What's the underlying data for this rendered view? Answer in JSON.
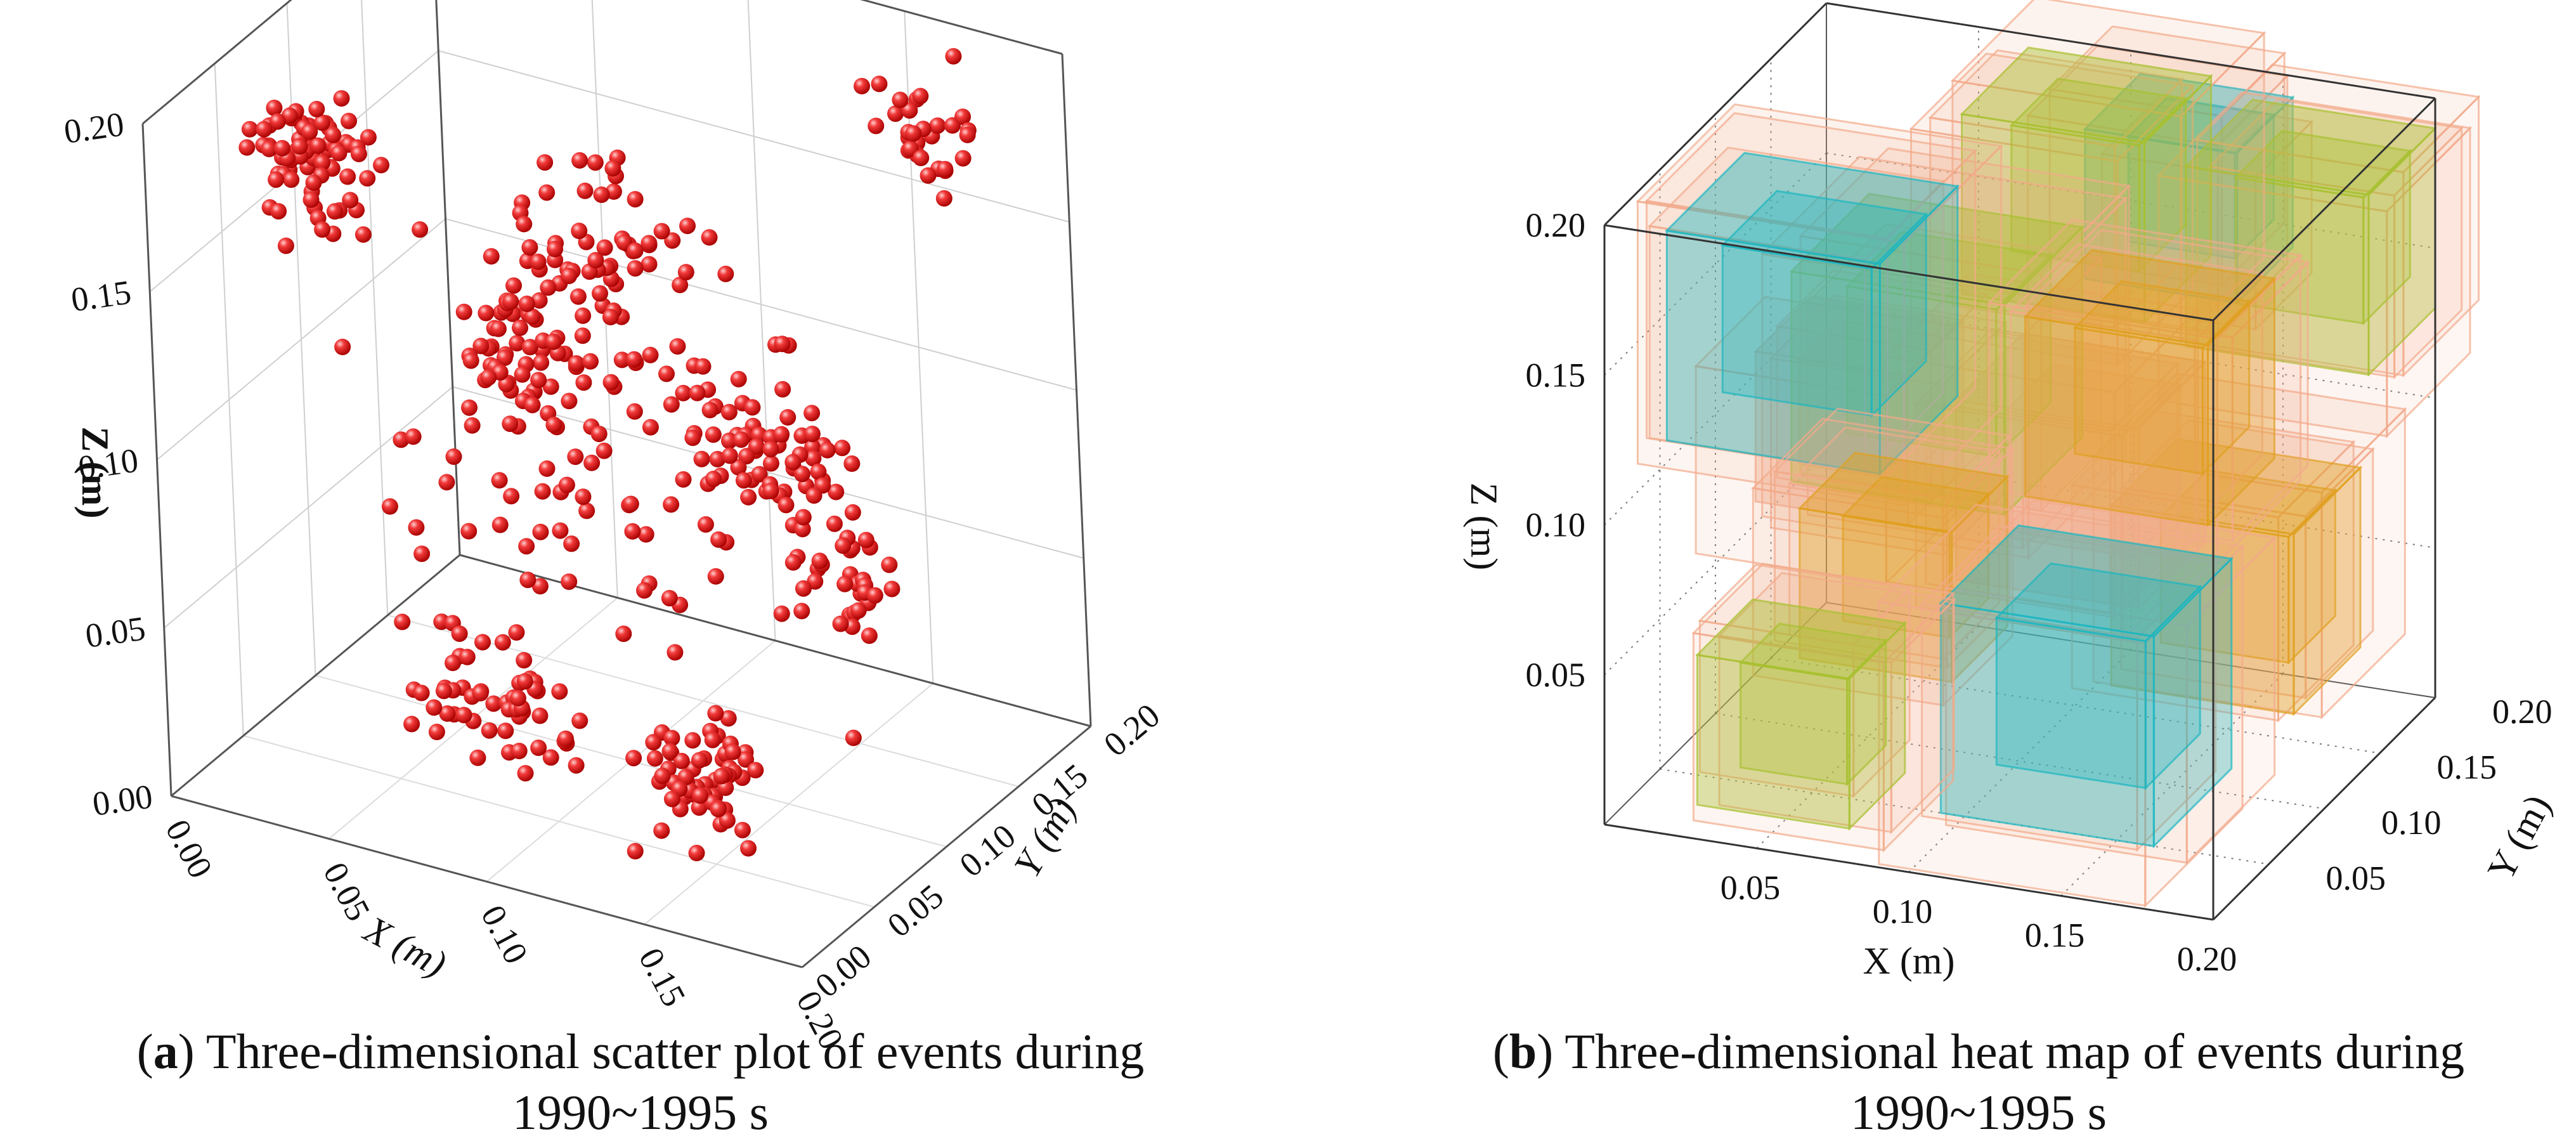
{
  "chart_data": [
    {
      "type": "scatter",
      "title": "",
      "xlabel": "X (m)",
      "ylabel": "Y (m)",
      "zlabel": "Z (m)",
      "xlim": [
        0,
        0.2
      ],
      "ylim": [
        0,
        0.2
      ],
      "zlim": [
        0,
        0.2
      ],
      "x_ticks": [
        "0.00",
        "0.05",
        "0.10",
        "0.15",
        "0.20"
      ],
      "y_ticks": [
        "0.00",
        "0.05",
        "0.10",
        "0.15",
        "0.20"
      ],
      "z_ticks": [
        "0.00",
        "0.05",
        "0.10",
        "0.15",
        "0.20"
      ],
      "marker_color": "#e0141b",
      "point_count": 520,
      "clusters": [
        {
          "x": 0.03,
          "y": 0.05,
          "z": 0.18,
          "spread": 0.03,
          "count": 75
        },
        {
          "x": 0.12,
          "y": 0.05,
          "z": 0.18,
          "spread": 0.04,
          "count": 45
        },
        {
          "x": 0.17,
          "y": 0.17,
          "z": 0.18,
          "spread": 0.03,
          "count": 30
        },
        {
          "x": 0.06,
          "y": 0.11,
          "z": 0.11,
          "spread": 0.03,
          "count": 45
        },
        {
          "x": 0.15,
          "y": 0.11,
          "z": 0.1,
          "spread": 0.03,
          "count": 40
        },
        {
          "x": 0.08,
          "y": 0.05,
          "z": 0.03,
          "spread": 0.04,
          "count": 60
        },
        {
          "x": 0.15,
          "y": 0.04,
          "z": 0.03,
          "spread": 0.03,
          "count": 65
        },
        {
          "x": 0.15,
          "y": 0.14,
          "z": 0.05,
          "spread": 0.03,
          "count": 35
        },
        {
          "x": 0.1,
          "y": 0.1,
          "z": 0.1,
          "spread": 0.1,
          "count": 125
        }
      ],
      "caption_label": "a",
      "caption_text": ") Three-dimensional scatter plot of events during",
      "caption_line2": "1990~1995 s"
    },
    {
      "type": "heatmap",
      "title": "",
      "xlabel": "X (m)",
      "ylabel": "Y (m)",
      "zlabel": "Z (m)",
      "xlim": [
        0,
        0.2
      ],
      "ylim": [
        0,
        0.2
      ],
      "zlim": [
        0,
        0.2
      ],
      "x_ticks": [
        "0.05",
        "0.10",
        "0.15",
        "0.20"
      ],
      "y_ticks": [
        "0.05",
        "0.10",
        "0.15",
        "0.20"
      ],
      "z_ticks": [
        "0.05",
        "0.10",
        "0.15",
        "0.20"
      ],
      "colors": {
        "low": "#f2a98a",
        "mid": "#e0a020",
        "high": "#a8c030",
        "peak": "#1bb6c0"
      },
      "blobs": [
        {
          "x": 0.05,
          "y": 0.05,
          "z": 0.16,
          "size": 0.07,
          "level": "peak"
        },
        {
          "x": 0.08,
          "y": 0.08,
          "z": 0.14,
          "size": 0.07,
          "level": "high"
        },
        {
          "x": 0.1,
          "y": 0.16,
          "z": 0.17,
          "size": 0.06,
          "level": "high"
        },
        {
          "x": 0.13,
          "y": 0.17,
          "z": 0.17,
          "size": 0.05,
          "level": "peak"
        },
        {
          "x": 0.17,
          "y": 0.17,
          "z": 0.16,
          "size": 0.06,
          "level": "high"
        },
        {
          "x": 0.15,
          "y": 0.08,
          "z": 0.14,
          "size": 0.06,
          "level": "mid"
        },
        {
          "x": 0.08,
          "y": 0.05,
          "z": 0.08,
          "size": 0.05,
          "level": "mid"
        },
        {
          "x": 0.14,
          "y": 0.05,
          "z": 0.05,
          "size": 0.07,
          "level": "peak"
        },
        {
          "x": 0.05,
          "y": 0.04,
          "z": 0.03,
          "size": 0.05,
          "level": "high"
        },
        {
          "x": 0.16,
          "y": 0.13,
          "z": 0.06,
          "size": 0.06,
          "level": "mid"
        },
        {
          "x": 0.12,
          "y": 0.1,
          "z": 0.1,
          "size": 0.06,
          "level": "low"
        },
        {
          "x": 0.04,
          "y": 0.12,
          "z": 0.1,
          "size": 0.05,
          "level": "low"
        }
      ],
      "caption_label": "b",
      "caption_text": ") Three-dimensional heat map of events during",
      "caption_line2": "1990~1995 s"
    }
  ]
}
